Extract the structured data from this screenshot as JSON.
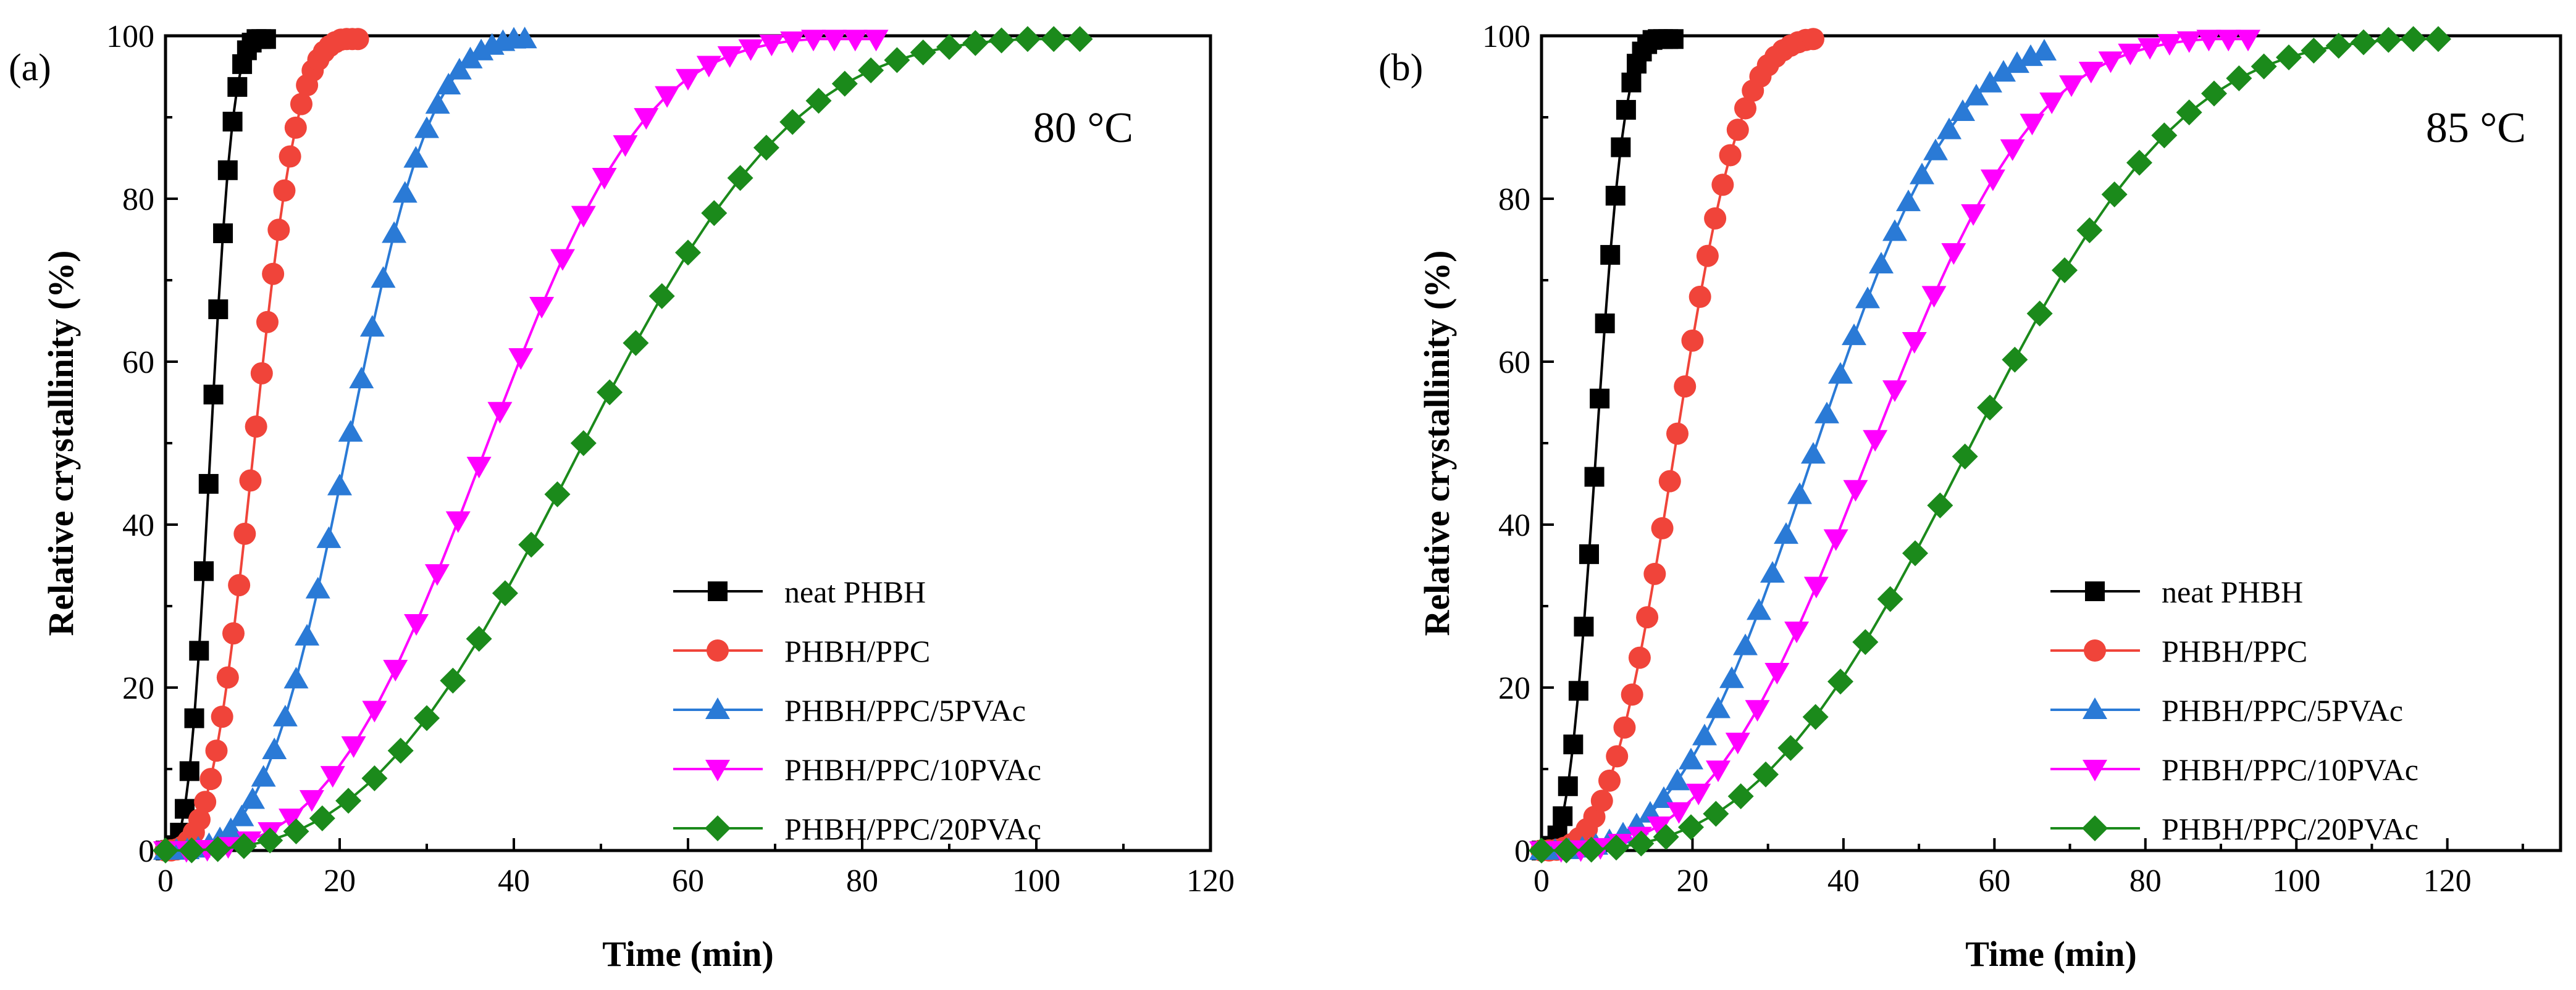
{
  "figure": {
    "panels": [
      {
        "label": "(a)",
        "temperature": "80 °C"
      },
      {
        "label": "(b)",
        "temperature": "85 °C"
      }
    ]
  },
  "chart_data": [
    {
      "type": "line",
      "panel_label": "(a)",
      "annotation": "80 °C",
      "xlabel": "Time (min)",
      "ylabel": "Relative crystallinity (%)",
      "xlim": [
        0,
        120
      ],
      "ylim": [
        0,
        100
      ],
      "xticks": [
        0,
        20,
        40,
        60,
        80,
        100,
        120
      ],
      "yticks": [
        0,
        20,
        40,
        60,
        80,
        100
      ],
      "legend_position": "bottom-right",
      "series": [
        {
          "name": "neat PHBH",
          "color": "#000000",
          "marker": "square",
          "t_half": 5.2,
          "n": 3.0,
          "t_end": 12,
          "step": 0.55
        },
        {
          "name": "PHBH/PPC",
          "color": "#f0443a",
          "marker": "circle",
          "t_half": 10.2,
          "n": 3.0,
          "t_end": 22.5,
          "step": 0.65
        },
        {
          "name": "PHBH/PPC/5PVAc",
          "color": "#2a7ad6",
          "marker": "triangle-up",
          "t_half": 21.0,
          "n": 3.2,
          "t_end": 41.5,
          "step": 1.25
        },
        {
          "name": "PHBH/PPC/10PVAc",
          "color": "#ff00ff",
          "marker": "triangle-down",
          "t_half": 37.0,
          "n": 3.0,
          "t_end": 83,
          "step": 2.4
        },
        {
          "name": "PHBH/PPC/20PVAc",
          "color": "#1b8a1b",
          "marker": "diamond",
          "t_half": 48.0,
          "n": 2.9,
          "t_end": 105,
          "step": 3.0
        }
      ]
    },
    {
      "type": "line",
      "panel_label": "(b)",
      "annotation": "85 °C",
      "xlabel": "Time (min)",
      "ylabel": "Relative crystallinity (%)",
      "xlim": [
        0,
        135
      ],
      "ylim": [
        0,
        100
      ],
      "xticks": [
        0,
        20,
        40,
        60,
        80,
        100,
        120
      ],
      "yticks": [
        0,
        20,
        40,
        60,
        80,
        100
      ],
      "legend_position": "bottom-right",
      "series": [
        {
          "name": "neat PHBH",
          "color": "#000000",
          "marker": "square",
          "t_half": 7.3,
          "n": 2.9,
          "t_end": 17.5,
          "step": 0.7
        },
        {
          "name": "PHBH/PPC",
          "color": "#f0443a",
          "marker": "circle",
          "t_half": 17.8,
          "n": 3.0,
          "t_end": 36,
          "step": 1.0
        },
        {
          "name": "PHBH/PPC/5PVAc",
          "color": "#2a7ad6",
          "marker": "triangle-up",
          "t_half": 36.5,
          "n": 2.9,
          "t_end": 67,
          "step": 1.8
        },
        {
          "name": "PHBH/PPC/10PVAc",
          "color": "#ff00ff",
          "marker": "triangle-down",
          "t_half": 44.0,
          "n": 3.0,
          "t_end": 95,
          "step": 2.6
        },
        {
          "name": "PHBH/PPC/20PVAc",
          "color": "#1b8a1b",
          "marker": "diamond",
          "t_half": 57.0,
          "n": 3.0,
          "t_end": 122,
          "step": 3.3
        }
      ]
    }
  ]
}
